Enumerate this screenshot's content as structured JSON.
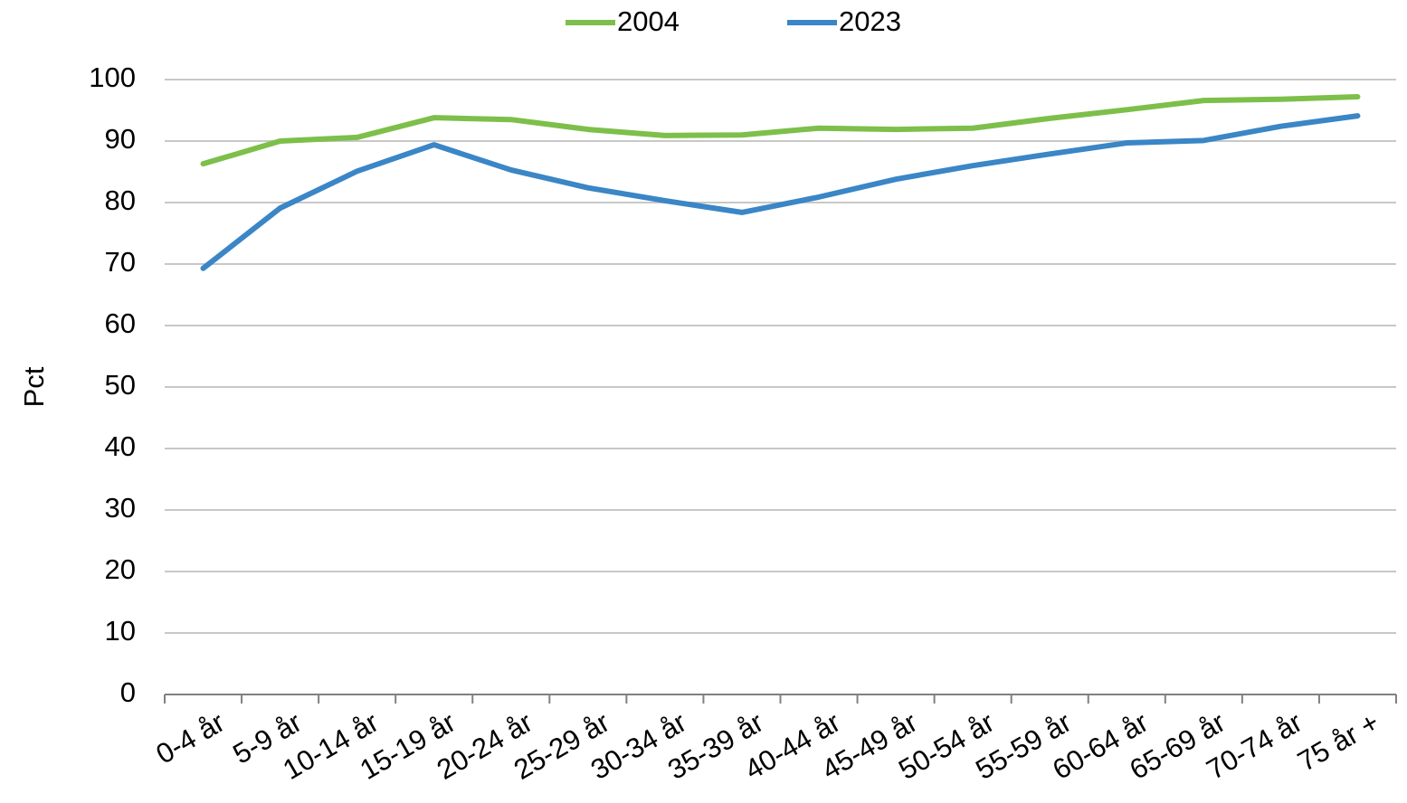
{
  "chart_data": {
    "type": "line",
    "categories": [
      "0-4 år",
      "5-9 år",
      "10-14 år",
      "15-19 år",
      "20-24 år",
      "25-29 år",
      "30-34 år",
      "35-39 år",
      "40-44 år",
      "45-49 år",
      "50-54 år",
      "55-59 år",
      "60-64 år",
      "65-69 år",
      "70-74 år",
      "75 år +"
    ],
    "series": [
      {
        "name": "2004",
        "color": "#7dbf4a",
        "values": [
          86.3,
          90.0,
          90.6,
          93.8,
          93.5,
          91.9,
          90.9,
          91.0,
          92.1,
          91.9,
          92.1,
          93.7,
          95.1,
          96.6,
          96.8,
          97.2
        ]
      },
      {
        "name": "2023",
        "color": "#3a86c6",
        "values": [
          69.3,
          79.1,
          85.1,
          89.4,
          85.3,
          82.4,
          80.3,
          78.4,
          80.9,
          83.8,
          86.0,
          87.9,
          89.7,
          90.1,
          92.4,
          94.1
        ]
      }
    ],
    "ylabel": "Pct",
    "ylim": [
      0,
      100
    ],
    "yticks": [
      0,
      10,
      20,
      30,
      40,
      50,
      60,
      70,
      80,
      90,
      100
    ],
    "grid": true,
    "legend": "top"
  }
}
